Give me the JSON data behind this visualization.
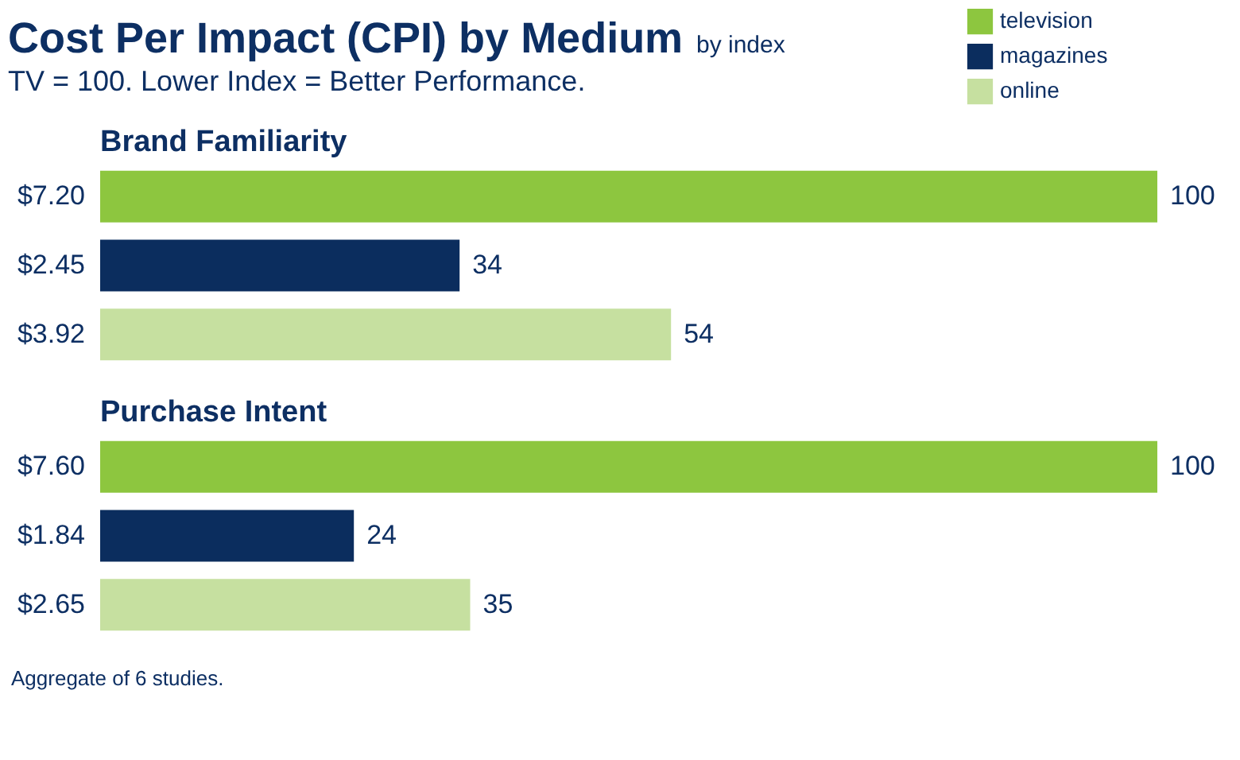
{
  "chart_data": [
    {
      "type": "other",
      "title": "Cost Per Impact (CPI) by Medium",
      "subtitle": "TV = 100. Lower Index = Better Performance.",
      "annotations": [
        "by index"
      ]
    },
    {
      "type": "bar",
      "orientation": "horizontal",
      "title": "Brand Familiarity",
      "categories": [
        "$7.20",
        "$2.45",
        "$3.92"
      ],
      "xlim": [
        0,
        100
      ],
      "tick_labels": "y",
      "data_labels": true,
      "legend": "top right",
      "series": [
        {
          "name": "television",
          "color": "#8dc63f",
          "values": [
            100,
            null,
            null
          ]
        },
        {
          "name": "magazines",
          "color": "#0b2d5e",
          "values": [
            null,
            34,
            null
          ]
        },
        {
          "name": "online",
          "color": "#c6e0a0",
          "values": [
            null,
            null,
            54
          ]
        }
      ]
    },
    {
      "type": "bar",
      "orientation": "horizontal",
      "title": "Purchase Intent",
      "categories": [
        "$7.60",
        "$1.84",
        "$2.65"
      ],
      "xlim": [
        0,
        100
      ],
      "tick_labels": "y",
      "data_labels": true,
      "annotations": [
        "Aggregate of 6 studies."
      ],
      "series": [
        {
          "color": "#8dc63f",
          "values": [
            100,
            null,
            null
          ]
        },
        {
          "color": "#0b2d5e",
          "values": [
            null,
            24,
            null
          ]
        },
        {
          "color": "#c6e0a0",
          "values": [
            null,
            null,
            35
          ]
        }
      ]
    }
  ]
}
